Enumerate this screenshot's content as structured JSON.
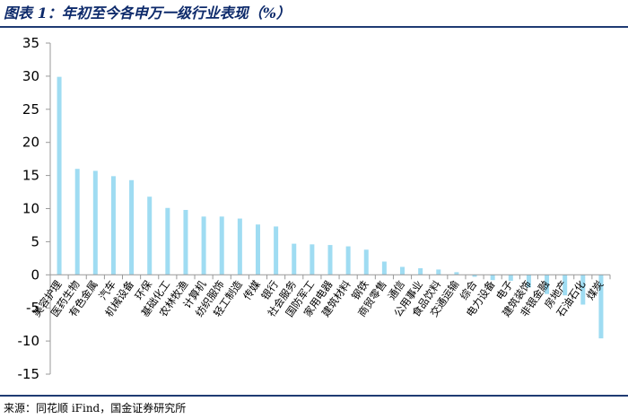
{
  "title": "图表 1：年初至今各申万一级行业表现（%）",
  "source": "来源：同花顺 iFind，国金证券研究所",
  "colors": {
    "bar": "#9fdcf2",
    "axis": "#999999",
    "rule": "#1f3b73",
    "title": "#0d2a6b"
  },
  "chart_data": {
    "type": "bar",
    "title": "年初至今各申万一级行业表现（%）",
    "xlabel": "",
    "ylabel": "",
    "ylim": [
      -15,
      35
    ],
    "yticks": [
      35,
      30,
      25,
      20,
      15,
      10,
      5,
      0,
      -5,
      -10,
      -15
    ],
    "grid": false,
    "legend": "none",
    "categories": [
      "美容护理",
      "医药生物",
      "有色金属",
      "汽车",
      "机械设备",
      "环保",
      "基础化工",
      "农林牧渔",
      "计算机",
      "纺织服饰",
      "轻工制造",
      "传媒",
      "银行",
      "社会服务",
      "国防军工",
      "家用电器",
      "建筑材料",
      "钢铁",
      "商贸零售",
      "通信",
      "公用事业",
      "食品饮料",
      "交通运输",
      "综合",
      "电力设备",
      "电子",
      "建筑装饰",
      "非银金融",
      "房地产",
      "石油石化",
      "煤炭"
    ],
    "values": [
      29.9,
      16.0,
      15.7,
      14.9,
      14.3,
      11.8,
      10.1,
      9.8,
      8.8,
      8.8,
      8.5,
      7.6,
      7.3,
      4.7,
      4.6,
      4.5,
      4.3,
      3.8,
      2.0,
      1.2,
      1.0,
      0.8,
      0.4,
      -0.3,
      -0.8,
      -0.9,
      -1.9,
      -2.9,
      -3.1,
      -4.5,
      -9.6
    ]
  }
}
